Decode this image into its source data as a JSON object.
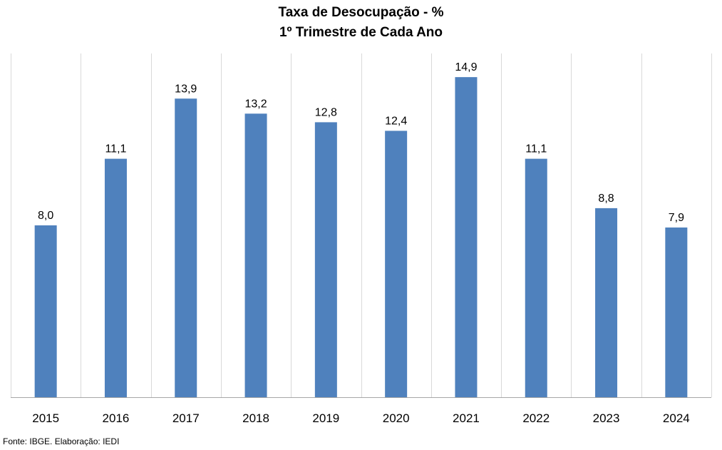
{
  "chart_data": {
    "type": "bar",
    "title": "Taxa de Desocupação - %",
    "subtitle": "1º Trimestre de Cada Ano",
    "categories": [
      "2015",
      "2016",
      "2017",
      "2018",
      "2019",
      "2020",
      "2021",
      "2022",
      "2023",
      "2024"
    ],
    "values": [
      8.0,
      11.1,
      13.9,
      13.2,
      12.8,
      12.4,
      14.9,
      11.1,
      8.8,
      7.9
    ],
    "value_labels": [
      "8,0",
      "11,1",
      "13,9",
      "13,2",
      "12,8",
      "12,4",
      "14,9",
      "11,1",
      "8,8",
      "7,9"
    ],
    "xlabel": "",
    "ylabel": "",
    "ylim": [
      0,
      16
    ],
    "grid": "vertical separators between categories",
    "legend": "none",
    "bar_color": "#4f81bd"
  },
  "footer": {
    "source": "Fonte: IBGE. Elaboração: IEDI"
  }
}
